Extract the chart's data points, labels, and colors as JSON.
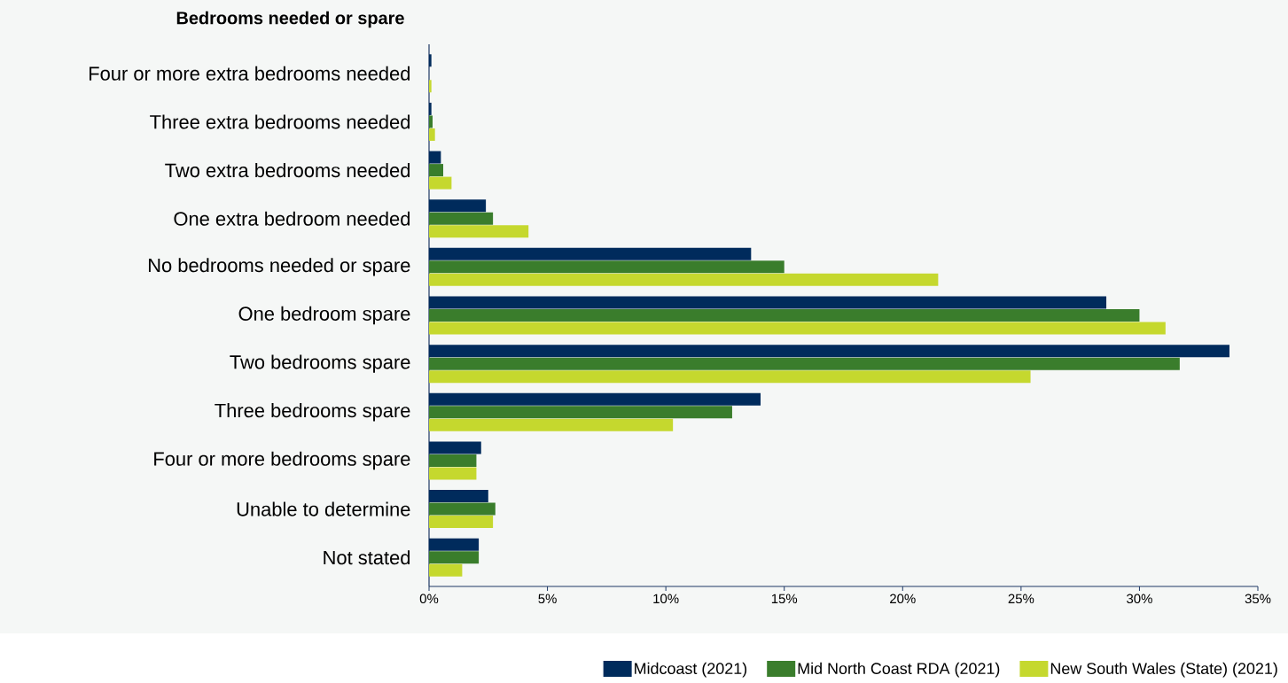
{
  "chart_data": {
    "type": "bar",
    "orientation": "horizontal",
    "title": "Bedrooms needed or spare",
    "categories": [
      "Four or more extra bedrooms needed",
      "Three extra bedrooms needed",
      "Two extra bedrooms needed",
      "One extra bedroom needed",
      "No bedrooms needed or spare",
      "One bedroom spare",
      "Two bedrooms spare",
      "Three bedrooms spare",
      "Four or more bedrooms spare",
      "Unable to determine",
      "Not stated"
    ],
    "series": [
      {
        "name": "Midcoast (2021)",
        "color": "#002b5c",
        "values": [
          0.1,
          0.1,
          0.5,
          2.4,
          13.6,
          28.6,
          33.8,
          14.0,
          2.2,
          2.5,
          2.1
        ]
      },
      {
        "name": "Mid North Coast RDA (2021)",
        "color": "#3a7d2c",
        "values": [
          0.0,
          0.15,
          0.6,
          2.7,
          15.0,
          30.0,
          31.7,
          12.8,
          2.0,
          2.8,
          2.1
        ]
      },
      {
        "name": "New South Wales (State) (2021)",
        "color": "#c5d82e",
        "values": [
          0.1,
          0.25,
          0.95,
          4.2,
          21.5,
          31.1,
          25.4,
          10.3,
          2.0,
          2.7,
          1.4
        ]
      }
    ],
    "xlim": [
      0,
      35
    ],
    "xticks": [
      {
        "value": 0,
        "label": "0%"
      },
      {
        "value": 5,
        "label": "5%"
      },
      {
        "value": 10,
        "label": "10%"
      },
      {
        "value": 15,
        "label": "15%"
      },
      {
        "value": 20,
        "label": "20%"
      },
      {
        "value": 25,
        "label": "25%"
      },
      {
        "value": 30,
        "label": "30%"
      },
      {
        "value": 35,
        "label": "35%"
      }
    ],
    "legend": "bottom right"
  }
}
